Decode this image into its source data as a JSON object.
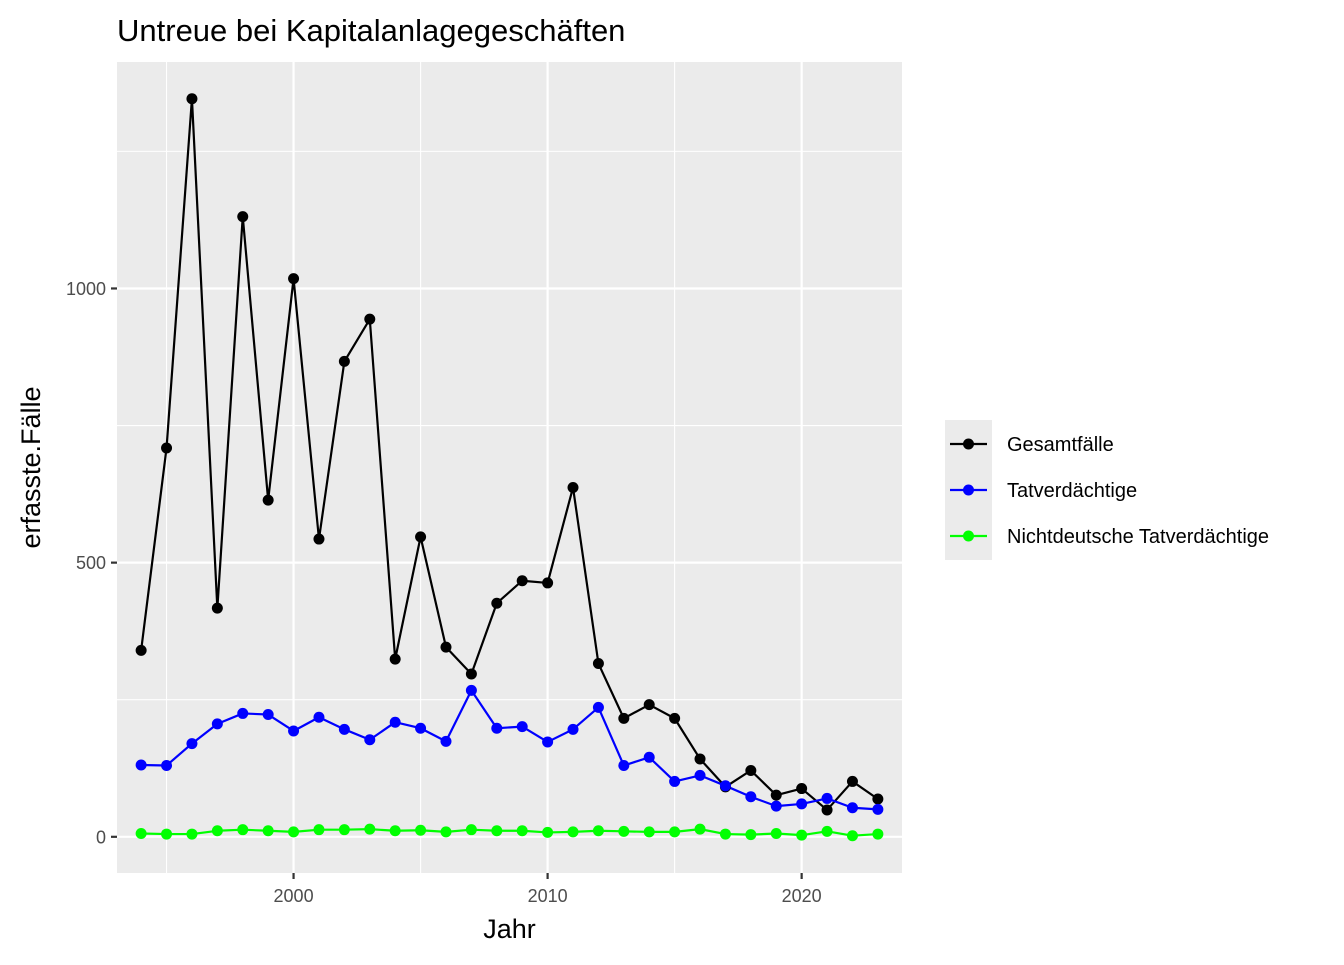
{
  "chart_data": {
    "type": "line",
    "title": "Untreue bei Kapitalanlagegeschäften",
    "xlabel": "Jahr",
    "ylabel": "erfasste.Fälle",
    "x": [
      1994,
      1995,
      1996,
      1997,
      1998,
      1999,
      2000,
      2001,
      2002,
      2003,
      2004,
      2005,
      2006,
      2007,
      2008,
      2009,
      2010,
      2011,
      2012,
      2013,
      2014,
      2015,
      2016,
      2017,
      2018,
      2019,
      2020,
      2021,
      2022,
      2023
    ],
    "series": [
      {
        "name": "Gesamtfälle",
        "color": "#000000",
        "values": [
          340,
          709,
          1346,
          417,
          1131,
          614,
          1018,
          543,
          867,
          944,
          324,
          547,
          346,
          297,
          426,
          467,
          463,
          637,
          316,
          216,
          241,
          216,
          142,
          91,
          121,
          76,
          88,
          49,
          101,
          69
        ]
      },
      {
        "name": "Tatverdächtige",
        "color": "#0000ff",
        "values": [
          131,
          130,
          170,
          206,
          225,
          223,
          193,
          218,
          196,
          177,
          209,
          198,
          174,
          267,
          198,
          201,
          173,
          196,
          236,
          130,
          145,
          101,
          112,
          93,
          73,
          56,
          60,
          70,
          53,
          50
        ]
      },
      {
        "name": "Nichtdeutsche Tatverdächtige",
        "color": "#00ff00",
        "values": [
          6,
          5,
          5,
          11,
          13,
          11,
          9,
          13,
          13,
          14,
          11,
          12,
          9,
          13,
          11,
          11,
          8,
          9,
          11,
          10,
          9,
          9,
          14,
          5,
          4,
          6,
          3,
          10,
          2,
          5
        ]
      }
    ],
    "xlim": [
      1993.05,
      2023.95
    ],
    "ylim": [
      -66,
      1413
    ],
    "x_ticks": [
      2000,
      2010,
      2020
    ],
    "x_tick_labels": [
      "2000",
      "2010",
      "2020"
    ],
    "y_ticks": [
      0,
      500,
      1000
    ],
    "y_tick_labels": [
      "0",
      "500",
      "1000"
    ],
    "x_minor_ticks": [
      1995,
      2005,
      2015
    ],
    "y_minor_ticks": [
      250,
      750,
      1250
    ],
    "grid": true,
    "legend_position": "right"
  },
  "colors": {
    "panel_background": "#ebebeb",
    "grid_line": "#ffffff",
    "axis_text": "#4d4d4d",
    "title_text": "#000000"
  }
}
